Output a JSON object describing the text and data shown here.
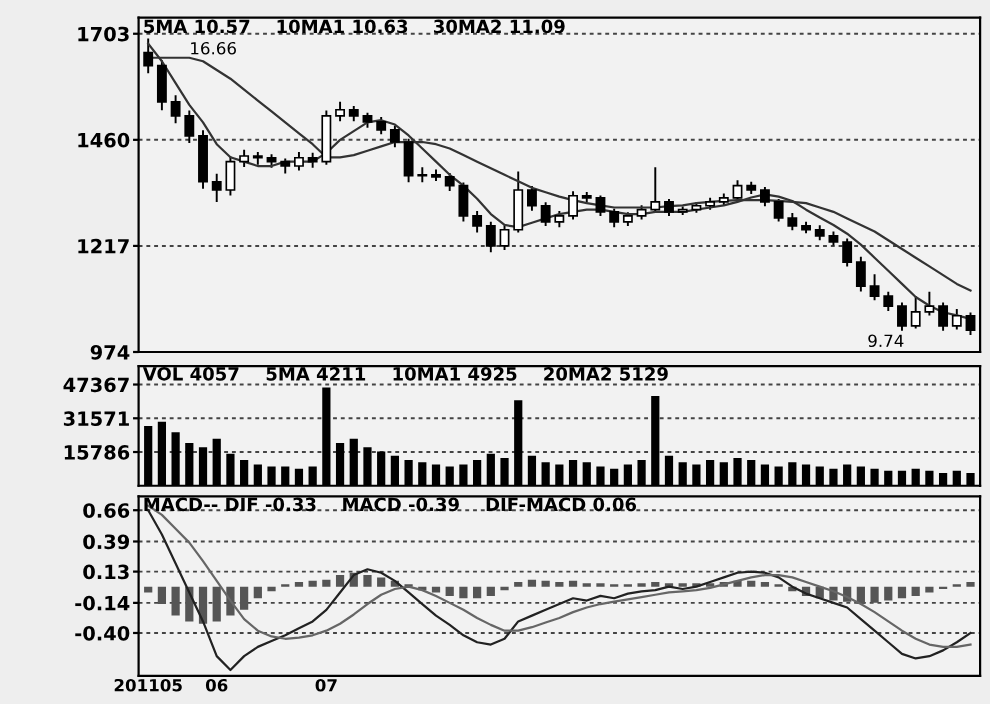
{
  "chart_data": [
    {
      "type": "candlestick",
      "categories": [
        null,
        null,
        null,
        null,
        null,
        null,
        null,
        null,
        null,
        null,
        null,
        null,
        null,
        null,
        null,
        null,
        null,
        null,
        null,
        null,
        null,
        null,
        null,
        null,
        null,
        null,
        null,
        null,
        null,
        null,
        null,
        null,
        null,
        null,
        null,
        null,
        null,
        null,
        null,
        null,
        null,
        null,
        null,
        null,
        null,
        null,
        null,
        null,
        null,
        null,
        null,
        null,
        null,
        null,
        null,
        null,
        null,
        null,
        null,
        null,
        null
      ],
      "color": "#000000",
      "ohlc": [
        [
          1660,
          1690,
          1615,
          1630
        ],
        [
          1630,
          1640,
          1530,
          1547
        ],
        [
          1547,
          1560,
          1500,
          1515
        ],
        [
          1515,
          1525,
          1455,
          1469
        ],
        [
          1469,
          1480,
          1350,
          1364
        ],
        [
          1364,
          1380,
          1320,
          1345
        ],
        [
          1345,
          1420,
          1335,
          1410
        ],
        [
          1410,
          1435,
          1400,
          1423
        ],
        [
          1423,
          1430,
          1405,
          1419
        ],
        [
          1419,
          1425,
          1398,
          1410
        ],
        [
          1410,
          1415,
          1385,
          1400
        ],
        [
          1400,
          1430,
          1392,
          1419
        ],
        [
          1419,
          1428,
          1398,
          1410
        ],
        [
          1410,
          1525,
          1405,
          1515
        ],
        [
          1515,
          1545,
          1505,
          1529
        ],
        [
          1529,
          1535,
          1505,
          1515
        ],
        [
          1515,
          1520,
          1490,
          1501
        ],
        [
          1501,
          1510,
          1475,
          1483
        ],
        [
          1483,
          1490,
          1445,
          1455
        ],
        [
          1455,
          1460,
          1365,
          1378
        ],
        [
          1378,
          1395,
          1365,
          1380
        ],
        [
          1380,
          1390,
          1368,
          1375
        ],
        [
          1375,
          1382,
          1345,
          1355
        ],
        [
          1355,
          1360,
          1275,
          1286
        ],
        [
          1286,
          1295,
          1250,
          1263
        ],
        [
          1263,
          1270,
          1205,
          1217
        ],
        [
          1217,
          1262,
          1210,
          1254
        ],
        [
          1254,
          1385,
          1250,
          1345
        ],
        [
          1345,
          1352,
          1300,
          1309
        ],
        [
          1309,
          1315,
          1265,
          1272
        ],
        [
          1272,
          1295,
          1262,
          1286
        ],
        [
          1286,
          1340,
          1280,
          1332
        ],
        [
          1332,
          1338,
          1318,
          1327
        ],
        [
          1327,
          1330,
          1288,
          1295
        ],
        [
          1295,
          1300,
          1262,
          1272
        ],
        [
          1272,
          1292,
          1265,
          1286
        ],
        [
          1286,
          1308,
          1280,
          1300
        ],
        [
          1300,
          1395,
          1295,
          1318
        ],
        [
          1318,
          1322,
          1288,
          1295
        ],
        [
          1295,
          1305,
          1290,
          1300
        ],
        [
          1300,
          1315,
          1295,
          1309
        ],
        [
          1309,
          1325,
          1302,
          1318
        ],
        [
          1318,
          1335,
          1312,
          1327
        ],
        [
          1327,
          1365,
          1322,
          1355
        ],
        [
          1355,
          1362,
          1338,
          1345
        ],
        [
          1345,
          1350,
          1310,
          1318
        ],
        [
          1318,
          1322,
          1275,
          1281
        ],
        [
          1281,
          1290,
          1255,
          1263
        ],
        [
          1263,
          1270,
          1248,
          1254
        ],
        [
          1254,
          1262,
          1232,
          1240
        ],
        [
          1240,
          1248,
          1220,
          1226
        ],
        [
          1226,
          1232,
          1172,
          1180
        ],
        [
          1180,
          1190,
          1115,
          1125
        ],
        [
          1125,
          1150,
          1095,
          1102
        ],
        [
          1102,
          1110,
          1070,
          1079
        ],
        [
          1079,
          1085,
          1025,
          1034
        ],
        [
          1034,
          1100,
          1030,
          1066
        ],
        [
          1066,
          1110,
          1060,
          1079
        ],
        [
          1079,
          1085,
          1025,
          1034
        ],
        [
          1034,
          1070,
          1028,
          1057
        ],
        [
          1057,
          1062,
          1015,
          1024
        ]
      ],
      "series": [
        {
          "type": "line",
          "color": "#333333",
          "values": [
            1680,
            1640,
            1590,
            1540,
            1500,
            1450,
            1420,
            1410,
            1400,
            1400,
            1410,
            1410,
            1410,
            1430,
            1460,
            1480,
            1500,
            1505,
            1495,
            1470,
            1440,
            1410,
            1380,
            1355,
            1325,
            1290,
            1265,
            1260,
            1270,
            1280,
            1290,
            1295,
            1300,
            1300,
            1295,
            1290,
            1290,
            1295,
            1295,
            1295,
            1300,
            1305,
            1310,
            1318,
            1328,
            1335,
            1330,
            1320,
            1300,
            1282,
            1265,
            1245,
            1220,
            1190,
            1160,
            1130,
            1100,
            1080,
            1065,
            1058,
            1050
          ]
        },
        {
          "type": "line",
          "color": "#333333",
          "values": [
            1648,
            1648,
            1648,
            1648,
            1640,
            1620,
            1600,
            1575,
            1550,
            1525,
            1500,
            1475,
            1450,
            1420,
            1420,
            1425,
            1435,
            1445,
            1455,
            1455,
            1455,
            1450,
            1440,
            1425,
            1410,
            1395,
            1380,
            1365,
            1350,
            1340,
            1330,
            1322,
            1315,
            1310,
            1305,
            1305,
            1305,
            1305,
            1308,
            1310,
            1315,
            1318,
            1320,
            1322,
            1322,
            1322,
            1320,
            1318,
            1315,
            1305,
            1295,
            1280,
            1265,
            1250,
            1230,
            1210,
            1190,
            1170,
            1150,
            1130,
            1115
          ]
        }
      ],
      "ylim": [
        974,
        1740
      ],
      "yticks": [
        974,
        1217,
        1460,
        1703
      ],
      "grid": "y",
      "tick_labels": "y",
      "annotations": [
        "5MA 10.57",
        "10MA1 10.63",
        "30MA2 11.09",
        {
          "text": "16.66",
          "y": 1648
        },
        "9.74"
      ]
    },
    {
      "type": "bar",
      "categories": [
        null,
        null,
        null,
        null,
        null,
        null,
        null,
        null,
        null,
        null,
        null,
        null,
        null,
        null,
        null,
        null,
        null,
        null,
        null,
        null,
        null,
        null,
        null,
        null,
        null,
        null,
        null,
        null,
        null,
        null,
        null,
        null,
        null,
        null,
        null,
        null,
        null,
        null,
        null,
        null,
        null,
        null,
        null,
        null,
        null,
        null,
        null,
        null,
        null,
        null,
        null,
        null,
        null,
        null,
        null,
        null,
        null,
        null,
        null,
        null,
        null
      ],
      "series": [
        {
          "type": "bar",
          "color": "#000000",
          "values": [
            28000,
            30000,
            25000,
            20000,
            18000,
            22000,
            15000,
            12000,
            10000,
            9000,
            9000,
            8000,
            9000,
            46000,
            20000,
            22000,
            18000,
            16000,
            14000,
            12000,
            11000,
            10000,
            9000,
            10000,
            12000,
            15000,
            13000,
            40000,
            14000,
            11000,
            10000,
            12000,
            11000,
            9000,
            8000,
            10000,
            12000,
            42000,
            14000,
            11000,
            10000,
            12000,
            11000,
            13000,
            12000,
            10000,
            9000,
            11000,
            10000,
            9000,
            8000,
            10000,
            9000,
            8000,
            7000,
            7000,
            8000,
            7000,
            6000,
            7000,
            6000
          ]
        }
      ],
      "ylim": [
        0,
        56000
      ],
      "yticks": [
        15786,
        31571,
        47367
      ],
      "grid": "y",
      "tick_labels": "y",
      "annotations": [
        "VOL 4057",
        "5MA 4211",
        "10MA1 4925",
        "20MA2 5129"
      ]
    },
    {
      "type": "bar",
      "categories": [
        "201105",
        null,
        null,
        null,
        null,
        "06",
        null,
        null,
        null,
        null,
        null,
        null,
        null,
        "07",
        null,
        null,
        null,
        null,
        null,
        null,
        null,
        null,
        null,
        null,
        null,
        null,
        null,
        null,
        null,
        null,
        null,
        null,
        null,
        null,
        null,
        null,
        null,
        null,
        null,
        null,
        null,
        null,
        null,
        null,
        null,
        null,
        null,
        null,
        null,
        null,
        null,
        null,
        null,
        null,
        null,
        null,
        null,
        null,
        null,
        null,
        null
      ],
      "series": [
        {
          "type": "bar",
          "color": "#555555",
          "values": [
            -0.05,
            -0.15,
            -0.25,
            -0.3,
            -0.32,
            -0.3,
            -0.25,
            -0.2,
            -0.1,
            -0.04,
            0.02,
            0.04,
            0.05,
            0.06,
            0.1,
            0.12,
            0.1,
            0.08,
            0.05,
            0.02,
            -0.03,
            -0.05,
            -0.08,
            -0.1,
            -0.1,
            -0.08,
            -0.03,
            0.04,
            0.06,
            0.05,
            0.04,
            0.05,
            0.03,
            0.03,
            0.02,
            0.02,
            0.03,
            0.04,
            0.03,
            0.03,
            0.03,
            0.03,
            0.04,
            0.05,
            0.05,
            0.04,
            0.02,
            -0.04,
            -0.08,
            -0.1,
            -0.12,
            -0.13,
            -0.15,
            -0.14,
            -0.12,
            -0.1,
            -0.08,
            -0.05,
            -0.02,
            0.02,
            0.04
          ]
        },
        {
          "type": "line",
          "color": "#222222",
          "values": [
            0.66,
            0.45,
            0.2,
            -0.05,
            -0.3,
            -0.6,
            -0.72,
            -0.6,
            -0.52,
            -0.47,
            -0.42,
            -0.36,
            -0.3,
            -0.2,
            -0.05,
            0.1,
            0.15,
            0.12,
            0.05,
            -0.05,
            -0.15,
            -0.25,
            -0.33,
            -0.42,
            -0.48,
            -0.5,
            -0.45,
            -0.3,
            -0.25,
            -0.2,
            -0.15,
            -0.1,
            -0.12,
            -0.08,
            -0.1,
            -0.06,
            -0.04,
            -0.03,
            0,
            -0.02,
            0,
            0.04,
            0.08,
            0.12,
            0.13,
            0.12,
            0.08,
            0,
            -0.06,
            -0.1,
            -0.14,
            -0.18,
            -0.28,
            -0.38,
            -0.48,
            -0.58,
            -0.62,
            -0.6,
            -0.55,
            -0.48,
            -0.4
          ]
        },
        {
          "type": "line",
          "color": "#666666",
          "values": [
            0.7,
            0.62,
            0.5,
            0.38,
            0.22,
            0.05,
            -0.12,
            -0.28,
            -0.38,
            -0.43,
            -0.45,
            -0.44,
            -0.42,
            -0.38,
            -0.32,
            -0.24,
            -0.15,
            -0.07,
            -0.02,
            0,
            -0.03,
            -0.08,
            -0.14,
            -0.2,
            -0.27,
            -0.33,
            -0.38,
            -0.38,
            -0.35,
            -0.31,
            -0.27,
            -0.22,
            -0.18,
            -0.15,
            -0.13,
            -0.11,
            -0.09,
            -0.07,
            -0.05,
            -0.04,
            -0.03,
            -0.01,
            0.02,
            0.05,
            0.08,
            0.1,
            0.1,
            0.08,
            0.04,
            0,
            -0.04,
            -0.09,
            -0.15,
            -0.22,
            -0.3,
            -0.38,
            -0.45,
            -0.5,
            -0.52,
            -0.52,
            -0.5
          ]
        }
      ],
      "ylim": [
        -0.77,
        0.78
      ],
      "yticks": [
        {
          "value": -0.4,
          "label": "-0.40"
        },
        -0.14,
        0.13,
        0.39,
        0.66
      ],
      "grid": "y",
      "annotations": [
        "MACD-- DIF -0.33",
        "MACD -0.39",
        "DIF-MACD 0.06"
      ]
    }
  ]
}
